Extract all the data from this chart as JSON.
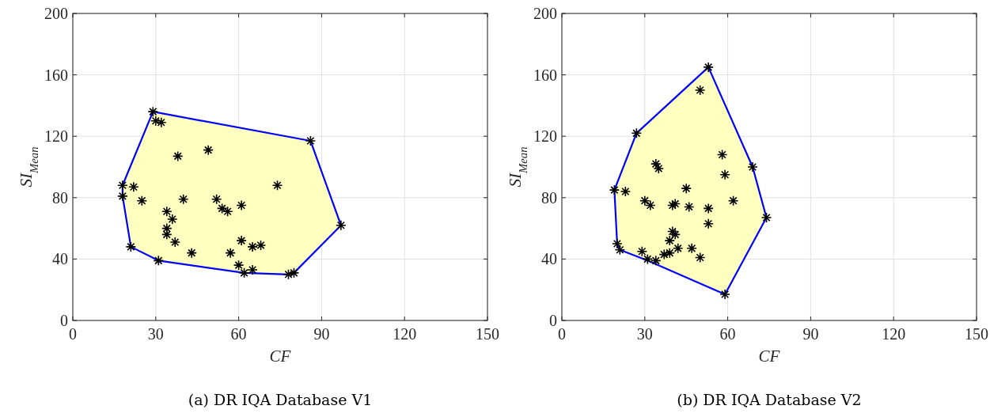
{
  "chart_data": [
    {
      "type": "scatter",
      "title": "(a) DR IQA Database V1",
      "xlabel": "CF",
      "ylabel": "SI$_{Mean}$",
      "xlim": [
        0,
        150
      ],
      "ylim": [
        0,
        200
      ],
      "xticks": [
        0,
        30,
        60,
        90,
        120,
        150
      ],
      "yticks": [
        0,
        40,
        80,
        120,
        160,
        200
      ],
      "grid": true,
      "marker": "cross",
      "series": [
        {
          "type": "area",
          "color": "#ffffc0",
          "marker": "none",
          "x": [
            29,
            86,
            97,
            80,
            78,
            62,
            31,
            21,
            18,
            18,
            29
          ],
          "values": [
            136,
            117,
            62,
            31,
            30,
            31,
            39,
            48,
            81,
            88,
            136
          ]
        },
        {
          "color": "#000000",
          "x": [
            29,
            30,
            32,
            86,
            38,
            49,
            18,
            22,
            18,
            25,
            40,
            52,
            54,
            56,
            61,
            74,
            97,
            34,
            36,
            34,
            34,
            37,
            21,
            43,
            57,
            61,
            65,
            68,
            31,
            60,
            62,
            65,
            78,
            80
          ],
          "values": [
            136,
            130,
            129,
            117,
            107,
            111,
            88,
            87,
            81,
            78,
            79,
            79,
            73,
            71,
            75,
            88,
            62,
            71,
            66,
            60,
            56,
            51,
            48,
            44,
            44,
            52,
            48,
            49,
            39,
            36,
            31,
            33,
            30,
            31
          ]
        }
      ]
    },
    {
      "type": "scatter",
      "title": "(b) DR IQA Database V2",
      "xlabel": "CF",
      "ylabel": "SI$_{Mean}$",
      "xlim": [
        0,
        150
      ],
      "ylim": [
        0,
        200
      ],
      "xticks": [
        0,
        30,
        60,
        90,
        120,
        150
      ],
      "yticks": [
        0,
        40,
        80,
        120,
        160,
        200
      ],
      "grid": true,
      "marker": "cross",
      "series": [
        {
          "type": "area",
          "color": "#ffffc0",
          "marker": "none",
          "x": [
            53,
            69,
            74,
            59,
            31,
            21,
            20,
            19,
            27,
            53
          ],
          "values": [
            165,
            100,
            67,
            17,
            39,
            46,
            50,
            85,
            122,
            165
          ]
        },
        {
          "color": "#000000",
          "x": [
            53,
            50,
            27,
            58,
            34,
            35,
            59,
            69,
            74,
            19,
            23,
            45,
            30,
            32,
            40,
            41,
            46,
            53,
            62,
            53,
            40,
            41,
            39,
            20,
            21,
            29,
            31,
            34,
            37,
            39,
            42,
            47,
            50,
            59
          ],
          "values": [
            165,
            150,
            122,
            108,
            102,
            99,
            95,
            100,
            67,
            85,
            84,
            86,
            78,
            75,
            75,
            76,
            74,
            73,
            78,
            63,
            58,
            56,
            52,
            50,
            46,
            45,
            40,
            39,
            43,
            44,
            47,
            47,
            41,
            17
          ]
        }
      ]
    }
  ]
}
